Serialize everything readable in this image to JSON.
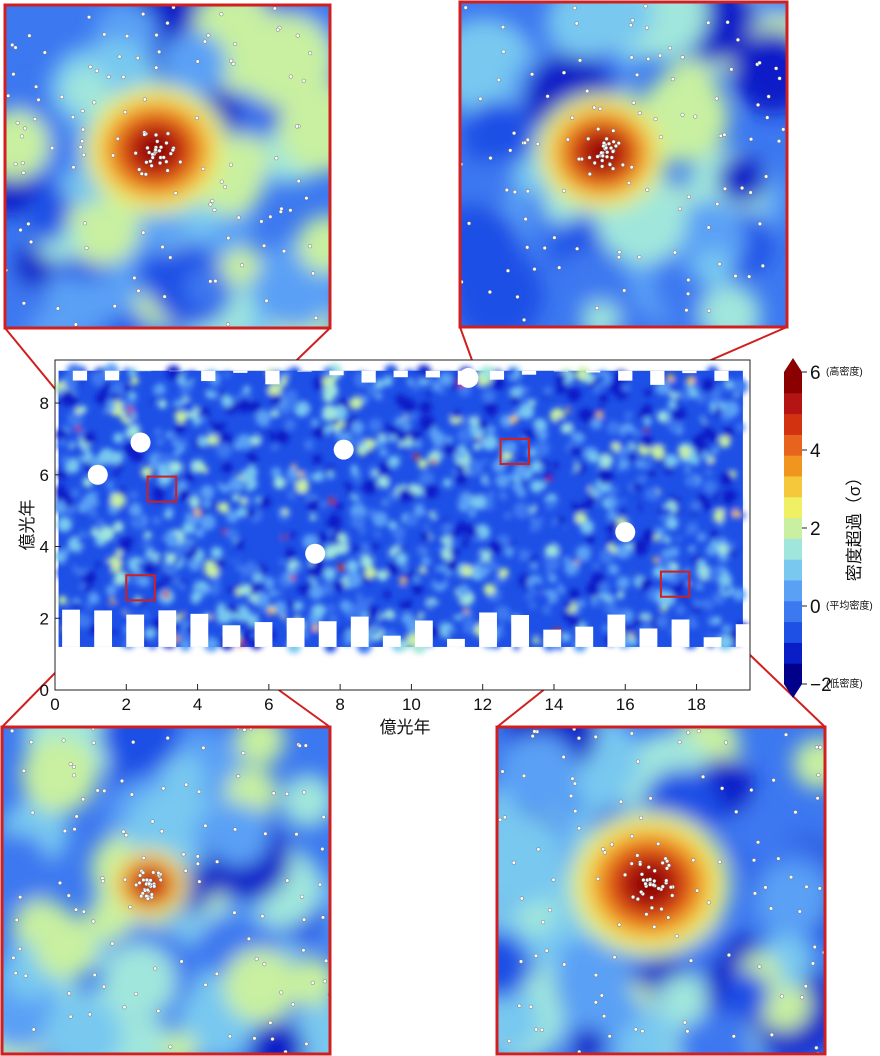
{
  "chart_data": {
    "type": "heatmap",
    "title": "",
    "xlabel": "億光年",
    "ylabel": "億光年",
    "xlim": [
      0,
      19.5
    ],
    "ylim": [
      0,
      9.2
    ],
    "x_ticks": [
      0,
      2,
      4,
      6,
      8,
      10,
      12,
      14,
      16,
      18
    ],
    "y_ticks": [
      0,
      2,
      4,
      6,
      8
    ],
    "colorbar": {
      "label": "密度超過（σ）",
      "range": [
        -2,
        6
      ],
      "ticks": [
        {
          "value": -2,
          "text": "−2",
          "note": "(低密度)"
        },
        {
          "value": 0,
          "text": "0",
          "note": "(平均密度)"
        },
        {
          "value": 2,
          "text": "2",
          "note": ""
        },
        {
          "value": 4,
          "text": "4",
          "note": ""
        },
        {
          "value": 6,
          "text": "6",
          "note": "(高密度)"
        }
      ],
      "colors": [
        "#00008b",
        "#0a1ec8",
        "#1e50e6",
        "#3c78f0",
        "#5aa0f5",
        "#78c8f0",
        "#a0e6dc",
        "#c8f0a0",
        "#f0f064",
        "#f5c83c",
        "#f0961e",
        "#e6641e",
        "#d2320f",
        "#b41414",
        "#8b0000"
      ]
    },
    "zoom_regions": [
      {
        "x": [
          2.6,
          3.4
        ],
        "y": [
          5.25,
          5.95
        ],
        "overdensity_peak": 6.0
      },
      {
        "x": [
          12.5,
          13.3
        ],
        "y": [
          6.3,
          7.0
        ],
        "overdensity_peak": 6.0
      },
      {
        "x": [
          2.0,
          2.8
        ],
        "y": [
          2.5,
          3.2
        ],
        "overdensity_peak": 5.0
      },
      {
        "x": [
          17.0,
          17.8
        ],
        "y": [
          2.6,
          3.3
        ],
        "overdensity_peak": 6.0
      }
    ],
    "voids": [
      [
        8.1,
        6.7
      ],
      [
        2.4,
        6.9
      ],
      [
        16.0,
        4.4
      ],
      [
        7.3,
        3.8
      ],
      [
        11.6,
        8.7
      ],
      [
        1.2,
        6.0
      ]
    ],
    "grid": false
  },
  "colors": {
    "frame": "#d11f1f",
    "axes": "#222222"
  }
}
